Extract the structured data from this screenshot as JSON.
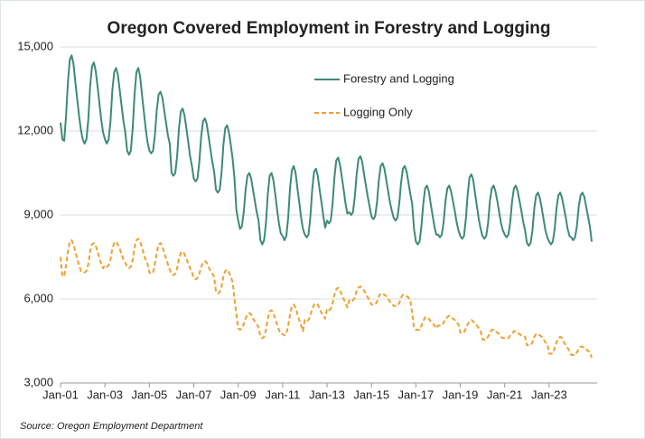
{
  "chart_data": {
    "type": "line",
    "title": "Oregon Covered Employment in Forestry and Logging",
    "source": "Source: Oregon Employment Department",
    "categories": [
      "Jan-01",
      null,
      null,
      null,
      null,
      null,
      null,
      null,
      null,
      null,
      null,
      null,
      null,
      null,
      null,
      null,
      null,
      null,
      null,
      null,
      null,
      null,
      null,
      null,
      "Jan-03",
      null,
      null,
      null,
      null,
      null,
      null,
      null,
      null,
      null,
      null,
      null,
      null,
      null,
      null,
      null,
      null,
      null,
      null,
      null,
      null,
      null,
      null,
      null,
      "Jan-05",
      null,
      null,
      null,
      null,
      null,
      null,
      null,
      null,
      null,
      null,
      null,
      null,
      null,
      null,
      null,
      null,
      null,
      null,
      null,
      null,
      null,
      null,
      null,
      "Jan-07",
      null,
      null,
      null,
      null,
      null,
      null,
      null,
      null,
      null,
      null,
      null,
      null,
      null,
      null,
      null,
      null,
      null,
      null,
      null,
      null,
      null,
      null,
      null,
      "Jan-09",
      null,
      null,
      null,
      null,
      null,
      null,
      null,
      null,
      null,
      null,
      null,
      null,
      null,
      null,
      null,
      null,
      null,
      null,
      null,
      null,
      null,
      null,
      null,
      "Jan-11",
      null,
      null,
      null,
      null,
      null,
      null,
      null,
      null,
      null,
      null,
      null,
      null,
      null,
      null,
      null,
      null,
      null,
      null,
      null,
      null,
      null,
      null,
      null,
      "Jan-13",
      null,
      null,
      null,
      null,
      null,
      null,
      null,
      null,
      null,
      null,
      null,
      null,
      null,
      null,
      null,
      null,
      null,
      null,
      null,
      null,
      null,
      null,
      null,
      "Jan-15",
      null,
      null,
      null,
      null,
      null,
      null,
      null,
      null,
      null,
      null,
      null,
      null,
      null,
      null,
      null,
      null,
      null,
      null,
      null,
      null,
      null,
      null,
      null,
      "Jan-17",
      null,
      null,
      null,
      null,
      null,
      null,
      null,
      null,
      null,
      null,
      null,
      null,
      null,
      null,
      null,
      null,
      null,
      null,
      null,
      null,
      null,
      null,
      null,
      "Jan-19",
      null,
      null,
      null,
      null,
      null,
      null,
      null,
      null,
      null,
      null,
      null,
      null,
      null,
      null,
      null,
      null,
      null,
      null,
      null,
      null,
      null,
      null,
      null,
      "Jan-21",
      null,
      null,
      null,
      null,
      null,
      null,
      null,
      null,
      null,
      null,
      null,
      null,
      null,
      null,
      null,
      null,
      null,
      null,
      null,
      null,
      null,
      null,
      null,
      "Jan-23",
      null,
      null,
      null,
      null,
      null,
      null,
      null,
      null,
      null,
      null,
      null,
      null,
      null,
      null,
      null,
      null,
      null,
      null,
      null,
      null,
      null,
      null,
      null
    ],
    "series": [
      {
        "name": "Forestry and Logging",
        "color": "#3d8a78",
        "dash": false,
        "values": [
          12300,
          11700,
          11650,
          12550,
          13750,
          14550,
          14700,
          14400,
          13750,
          13150,
          12550,
          12050,
          11700,
          11550,
          11700,
          12400,
          13600,
          14300,
          14450,
          14150,
          13600,
          13000,
          12400,
          11950,
          11700,
          11550,
          11700,
          12350,
          13450,
          14100,
          14250,
          14000,
          13450,
          12900,
          12350,
          11950,
          11300,
          11150,
          11300,
          12100,
          13300,
          14100,
          14250,
          13950,
          13300,
          12700,
          12100,
          11600,
          11300,
          11200,
          11300,
          11850,
          12750,
          13300,
          13400,
          13200,
          12750,
          12300,
          11850,
          11550,
          10500,
          10400,
          10500,
          11100,
          12100,
          12700,
          12800,
          12550,
          12100,
          11600,
          11100,
          10750,
          10300,
          10200,
          10300,
          10900,
          11800,
          12350,
          12450,
          12250,
          11800,
          11350,
          10900,
          10550,
          9900,
          9800,
          9900,
          10500,
          11500,
          12100,
          12200,
          11950,
          11500,
          11000,
          10300,
          9200,
          8800,
          8500,
          8600,
          9100,
          9900,
          10400,
          10500,
          10300,
          9900,
          9500,
          9100,
          8800,
          8100,
          7950,
          8100,
          8700,
          9750,
          10400,
          10500,
          10250,
          9750,
          9200,
          8700,
          8350,
          8250,
          8100,
          8250,
          8900,
          9950,
          10600,
          10750,
          10500,
          9950,
          9450,
          8900,
          8500,
          8300,
          8200,
          8300,
          8950,
          9900,
          10550,
          10650,
          10400,
          9900,
          9450,
          8950,
          8550,
          8800,
          8700,
          8800,
          9400,
          10350,
          10950,
          11050,
          10800,
          10350,
          9900,
          9400,
          9050,
          9100,
          9000,
          9100,
          9650,
          10450,
          11000,
          11100,
          10900,
          10450,
          10050,
          9650,
          9300,
          8950,
          8850,
          8950,
          9450,
          10250,
          10750,
          10850,
          10650,
          10250,
          9850,
          9450,
          9150,
          8900,
          8800,
          8900,
          9400,
          10150,
          10650,
          10750,
          10550,
          10150,
          9750,
          9400,
          8500,
          8050,
          7950,
          8050,
          8600,
          9400,
          9950,
          10050,
          9850,
          9400,
          9000,
          8600,
          8300,
          8300,
          8200,
          8300,
          8750,
          9500,
          9950,
          10050,
          9850,
          9500,
          9150,
          8750,
          8450,
          8250,
          8150,
          8250,
          8850,
          9750,
          10350,
          10450,
          10250,
          9750,
          9300,
          8850,
          8500,
          8250,
          8150,
          8250,
          8700,
          9500,
          9950,
          10050,
          9850,
          9500,
          9100,
          8700,
          8450,
          8300,
          8200,
          8300,
          8750,
          9500,
          9950,
          10050,
          9850,
          9500,
          9150,
          8750,
          8450,
          8000,
          7900,
          8000,
          8450,
          9250,
          9700,
          9800,
          9600,
          9250,
          8850,
          8450,
          8200,
          8050,
          7950,
          8050,
          8500,
          9250,
          9700,
          9800,
          9600,
          9250,
          8900,
          8500,
          8250,
          8200,
          8100,
          8200,
          8600,
          9300,
          9700,
          9800,
          9650,
          9300,
          8950,
          8600,
          8050
        ]
      },
      {
        "name": "Logging Only",
        "color": "#f0a030",
        "dash": true,
        "values": [
          7500,
          6800,
          6850,
          7200,
          7700,
          8050,
          8100,
          7950,
          7700,
          7450,
          7200,
          7000,
          7000,
          6950,
          7000,
          7250,
          7700,
          7950,
          8000,
          7900,
          7700,
          7450,
          7250,
          7100,
          7200,
          7150,
          7200,
          7400,
          7800,
          8000,
          8050,
          7950,
          7800,
          7600,
          7400,
          7300,
          7150,
          7100,
          7150,
          7400,
          7850,
          8100,
          8150,
          8050,
          7850,
          7600,
          7400,
          7250,
          6950,
          6900,
          6950,
          7250,
          7650,
          7950,
          8000,
          7900,
          7650,
          7450,
          7250,
          7050,
          6900,
          6850,
          6900,
          7100,
          7450,
          7650,
          7700,
          7600,
          7450,
          7250,
          7100,
          6950,
          6750,
          6700,
          6750,
          6900,
          7150,
          7300,
          7350,
          7300,
          7150,
          7000,
          6900,
          6800,
          6250,
          6200,
          6250,
          6450,
          6800,
          7000,
          7050,
          6950,
          6800,
          6600,
          6000,
          5450,
          4950,
          4900,
          4950,
          5100,
          5300,
          5450,
          5500,
          5450,
          5300,
          5200,
          5100,
          5000,
          4650,
          4600,
          4650,
          4900,
          5300,
          5550,
          5600,
          5500,
          5300,
          5100,
          4900,
          4750,
          4750,
          4700,
          4750,
          5050,
          5450,
          5750,
          5800,
          5700,
          5450,
          5250,
          5050,
          4850,
          5250,
          5200,
          5250,
          5400,
          5650,
          5800,
          5850,
          5800,
          5650,
          5500,
          5400,
          5300,
          5650,
          5600,
          5650,
          5850,
          6150,
          6350,
          6400,
          6300,
          6150,
          6000,
          5850,
          5700,
          5950,
          5900,
          5950,
          6050,
          6300,
          6400,
          6450,
          6400,
          6300,
          6200,
          6050,
          5950,
          5800,
          5800,
          5800,
          5900,
          6100,
          6200,
          6200,
          6150,
          6100,
          6000,
          5900,
          5850,
          5750,
          5750,
          5750,
          5850,
          6050,
          6150,
          6150,
          6100,
          6050,
          5950,
          5500,
          4950,
          4900,
          4900,
          4900,
          5050,
          5200,
          5350,
          5350,
          5300,
          5200,
          5150,
          5050,
          4950,
          5050,
          5050,
          5050,
          5150,
          5300,
          5350,
          5400,
          5350,
          5300,
          5250,
          5150,
          5100,
          4800,
          4800,
          4800,
          4950,
          5100,
          5200,
          5250,
          5200,
          5100,
          5050,
          4950,
          4850,
          4550,
          4550,
          4550,
          4650,
          4800,
          4900,
          4900,
          4850,
          4800,
          4750,
          4650,
          4600,
          4600,
          4600,
          4600,
          4700,
          4750,
          4850,
          4850,
          4800,
          4750,
          4700,
          4700,
          4650,
          4350,
          4350,
          4350,
          4450,
          4650,
          4750,
          4750,
          4700,
          4650,
          4550,
          4450,
          4400,
          4050,
          4050,
          4050,
          4250,
          4450,
          4600,
          4650,
          4600,
          4450,
          4350,
          4250,
          4150,
          4000,
          4000,
          4000,
          4100,
          4200,
          4300,
          4300,
          4250,
          4200,
          4150,
          4100,
          3900
        ]
      }
    ],
    "ylim": [
      3000,
      15000
    ],
    "yticks": [
      {
        "value": 3000,
        "label": "3,000"
      },
      {
        "value": 6000,
        "label": "6,000"
      },
      {
        "value": 9000,
        "label": "9,000"
      },
      {
        "value": 12000,
        "label": "12,000"
      },
      {
        "value": 15000,
        "label": "15,000"
      }
    ],
    "grid": true,
    "legend": "top-center"
  }
}
